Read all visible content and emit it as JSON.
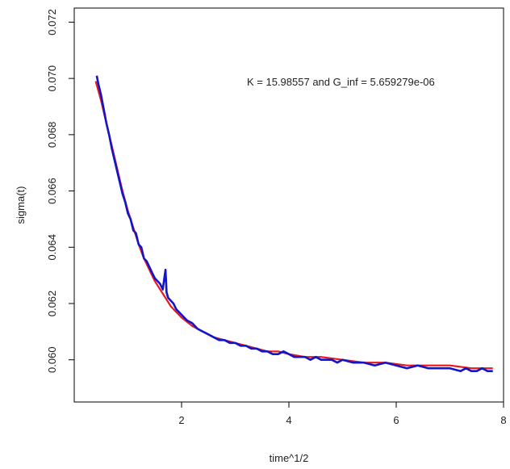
{
  "chart_data": {
    "type": "line",
    "title": "",
    "xlabel": "time^1/2",
    "ylabel": "sigma(t)",
    "xlim": [
      0.0,
      8.0
    ],
    "ylim": [
      0.0585,
      0.0725
    ],
    "x_ticks": [
      2,
      4,
      6,
      8
    ],
    "x_tick_labels": [
      "2",
      "4",
      "6",
      "8"
    ],
    "y_ticks": [
      0.06,
      0.062,
      0.064,
      0.066,
      0.068,
      0.07,
      0.072
    ],
    "y_tick_labels": [
      "0.060",
      "0.062",
      "0.064",
      "0.066",
      "0.068",
      "0.070",
      "0.072"
    ],
    "annotation": "K = 15.98557 and G_inf = 5.659279e-06",
    "grid": false,
    "colors": {
      "fit": "#e8191c",
      "data": "#1414c8"
    },
    "series": [
      {
        "x": [
          0.4,
          0.5,
          0.6,
          0.7,
          0.8,
          0.9,
          1.0,
          1.1,
          1.2,
          1.3,
          1.4,
          1.5,
          1.6,
          1.7,
          1.8,
          1.9,
          2.0,
          2.2,
          2.4,
          2.6,
          2.8,
          3.0,
          3.2,
          3.4,
          3.6,
          3.8,
          4.0,
          4.3,
          4.6,
          5.0,
          5.4,
          5.8,
          6.2,
          6.6,
          7.0,
          7.4,
          7.8
        ],
        "values": [
          0.0699,
          0.0692,
          0.0684,
          0.0676,
          0.0668,
          0.066,
          0.0653,
          0.0647,
          0.0641,
          0.0636,
          0.0632,
          0.0628,
          0.0625,
          0.0622,
          0.0619,
          0.0617,
          0.0615,
          0.0612,
          0.061,
          0.0608,
          0.0607,
          0.0606,
          0.0605,
          0.0604,
          0.0603,
          0.0603,
          0.0602,
          0.0601,
          0.0601,
          0.06,
          0.0599,
          0.0599,
          0.0598,
          0.0598,
          0.0598,
          0.0597,
          0.0597
        ]
      },
      {
        "x": [
          0.42,
          0.45,
          0.5,
          0.55,
          0.6,
          0.65,
          0.7,
          0.75,
          0.8,
          0.85,
          0.9,
          0.95,
          1.0,
          1.05,
          1.1,
          1.15,
          1.2,
          1.25,
          1.3,
          1.35,
          1.4,
          1.45,
          1.5,
          1.55,
          1.6,
          1.65,
          1.7,
          1.72,
          1.75,
          1.8,
          1.85,
          1.9,
          2.0,
          2.1,
          2.2,
          2.3,
          2.4,
          2.5,
          2.6,
          2.7,
          2.8,
          2.9,
          3.0,
          3.1,
          3.2,
          3.3,
          3.4,
          3.5,
          3.6,
          3.7,
          3.8,
          3.9,
          4.0,
          4.1,
          4.2,
          4.3,
          4.4,
          4.5,
          4.6,
          4.7,
          4.8,
          4.9,
          5.0,
          5.2,
          5.4,
          5.6,
          5.8,
          6.0,
          6.2,
          6.4,
          6.6,
          6.8,
          7.0,
          7.2,
          7.3,
          7.4,
          7.5,
          7.6,
          7.7,
          7.8
        ],
        "values": [
          0.0701,
          0.0698,
          0.0694,
          0.0689,
          0.0684,
          0.068,
          0.0675,
          0.0671,
          0.0667,
          0.0663,
          0.0659,
          0.0656,
          0.0652,
          0.065,
          0.0646,
          0.0645,
          0.0641,
          0.064,
          0.0636,
          0.0635,
          0.0633,
          0.0631,
          0.0629,
          0.0628,
          0.0627,
          0.0625,
          0.0632,
          0.0624,
          0.0622,
          0.0621,
          0.062,
          0.0618,
          0.0616,
          0.0614,
          0.0613,
          0.0611,
          0.061,
          0.0609,
          0.0608,
          0.0607,
          0.0607,
          0.0606,
          0.0606,
          0.0605,
          0.0605,
          0.0604,
          0.0604,
          0.0603,
          0.0603,
          0.0602,
          0.0602,
          0.0603,
          0.0602,
          0.0601,
          0.0601,
          0.0601,
          0.06,
          0.0601,
          0.06,
          0.06,
          0.06,
          0.0599,
          0.06,
          0.0599,
          0.0599,
          0.0598,
          0.0599,
          0.0598,
          0.0597,
          0.0598,
          0.0597,
          0.0597,
          0.0597,
          0.0596,
          0.0597,
          0.0596,
          0.0596,
          0.0597,
          0.0596,
          0.0596
        ]
      }
    ]
  }
}
